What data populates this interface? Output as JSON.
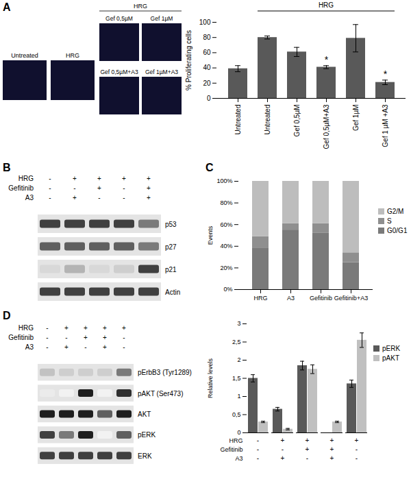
{
  "micrographs": {
    "panel": "A",
    "single": [
      "Untreated",
      "HRG"
    ],
    "group_label": "HRG",
    "group": [
      "Gef 0,5µM",
      "Gef 1µM",
      "Gef 0,5µM+A3",
      "Gef 1µM+A3"
    ]
  },
  "blots": [
    {
      "panel": "B",
      "conditions": [
        {
          "name": "HRG",
          "values": [
            "-",
            "+",
            "+",
            "+",
            "+"
          ]
        },
        {
          "name": "Gefitinib",
          "values": [
            "-",
            "-",
            "+",
            "-",
            "+"
          ]
        },
        {
          "name": "A3",
          "values": [
            "-",
            "+",
            "-",
            "-",
            "+"
          ]
        }
      ],
      "bands": [
        {
          "name": "p53",
          "intensity": [
            0.8,
            0.8,
            0.8,
            0.8,
            0.6
          ]
        },
        {
          "name": "p27",
          "intensity": [
            0.7,
            0.7,
            0.7,
            0.7,
            0.6
          ]
        },
        {
          "name": "p21",
          "intensity": [
            0.25,
            0.4,
            0.25,
            0.3,
            0.8
          ]
        },
        {
          "name": "Actin",
          "intensity": [
            0.8,
            0.8,
            0.8,
            0.8,
            0.8
          ]
        }
      ]
    },
    {
      "panel": "D",
      "conditions": [
        {
          "name": "HRG",
          "values": [
            "-",
            "+",
            "+",
            "+",
            "+"
          ]
        },
        {
          "name": "Gefitinib",
          "values": [
            "-",
            "-",
            "+",
            "+",
            "-"
          ]
        },
        {
          "name": "A3",
          "values": [
            "-",
            "+",
            "-",
            "+",
            "-"
          ]
        }
      ],
      "bands": [
        {
          "name": "pErbB3 (Tyr1289)",
          "intensity": [
            0.35,
            0.3,
            0.3,
            0.3,
            0.6
          ]
        },
        {
          "name": "pAKT (Ser473)",
          "intensity": [
            0.15,
            0.1,
            0.9,
            0.1,
            0.85
          ]
        },
        {
          "name": "AKT",
          "intensity": [
            0.9,
            0.9,
            0.9,
            0.7,
            0.9
          ]
        },
        {
          "name": "pERK",
          "intensity": [
            0.8,
            0.6,
            0.9,
            0.1,
            0.7
          ]
        },
        {
          "name": "ERK",
          "intensity": [
            0.8,
            0.8,
            0.8,
            0.8,
            0.8
          ]
        }
      ]
    }
  ],
  "chart_data": [
    {
      "panel": "A",
      "type": "bar",
      "categories": [
        "Untreated",
        "Untreated",
        "Gef 0,5µM",
        "Gef 0,5µM+A3",
        "Gef 1µM",
        "Gef 1 µM +A3"
      ],
      "values": [
        39,
        80,
        61,
        41,
        79,
        21
      ],
      "errors": [
        4,
        2,
        6,
        2,
        18,
        3
      ],
      "significance": [
        null,
        null,
        null,
        "*",
        null,
        "*"
      ],
      "groups": [
        null,
        "HRG",
        "HRG",
        "HRG",
        "HRG",
        "HRG"
      ],
      "color": "#595959",
      "y_label": "% Proliferating cells",
      "ylim": [
        0,
        100
      ],
      "yticks": [
        0,
        20,
        40,
        60,
        80,
        100
      ]
    },
    {
      "panel": "C",
      "type": "bar",
      "stacked": true,
      "categories": [
        "HRG",
        "A3",
        "Gefitinib",
        "Gefitinib+A3"
      ],
      "series": [
        {
          "name": "G0/G1",
          "color": "#7a7a7a",
          "values": [
            38,
            55,
            52,
            25
          ]
        },
        {
          "name": "S",
          "color": "#8f8f8f",
          "values": [
            11,
            6,
            9,
            9
          ]
        },
        {
          "name": "G2/M",
          "color": "#bdbdbd",
          "values": [
            51,
            39,
            39,
            66
          ]
        }
      ],
      "y_label": "Events",
      "ylim": [
        0,
        100
      ],
      "yticks": [
        {
          "value": 0,
          "label": "0%"
        },
        {
          "value": 20,
          "label": "20%"
        },
        {
          "value": 40,
          "label": "40%"
        },
        {
          "value": 60,
          "label": "60%"
        },
        {
          "value": 80,
          "label": "80%"
        },
        {
          "value": 100,
          "label": "100%"
        }
      ],
      "legend": "right"
    },
    {
      "panel": "D",
      "type": "bar",
      "categories": [
        null,
        null,
        null,
        null,
        null
      ],
      "conditions": [
        {
          "name": "HRG",
          "values": [
            "-",
            "+",
            "+",
            "+",
            "+"
          ]
        },
        {
          "name": "Gefitinib",
          "values": [
            "-",
            "-",
            "+",
            "+",
            "-"
          ]
        },
        {
          "name": "A3",
          "values": [
            "-",
            "+",
            "-",
            "+",
            "-"
          ]
        }
      ],
      "series": [
        {
          "name": "pERK",
          "color": "#595959",
          "values": [
            1.5,
            0.65,
            1.85,
            0,
            1.35
          ],
          "errors": [
            0.1,
            0.05,
            0.12,
            0,
            0.1
          ]
        },
        {
          "name": "pAKT",
          "color": "#c0c0c0",
          "values": [
            0.3,
            0.1,
            1.75,
            0.3,
            2.55
          ],
          "errors": [
            0.02,
            0.02,
            0.12,
            0.02,
            0.2
          ]
        }
      ],
      "y_label": "Relative levels",
      "ylim": [
        0,
        3
      ],
      "yticks": [
        0,
        {
          "value": 0.5,
          "label": "0,5"
        },
        1,
        {
          "value": 1.5,
          "label": "1,5"
        },
        2,
        {
          "value": 2.5,
          "label": "2,5"
        },
        3
      ],
      "legend": "right"
    }
  ]
}
